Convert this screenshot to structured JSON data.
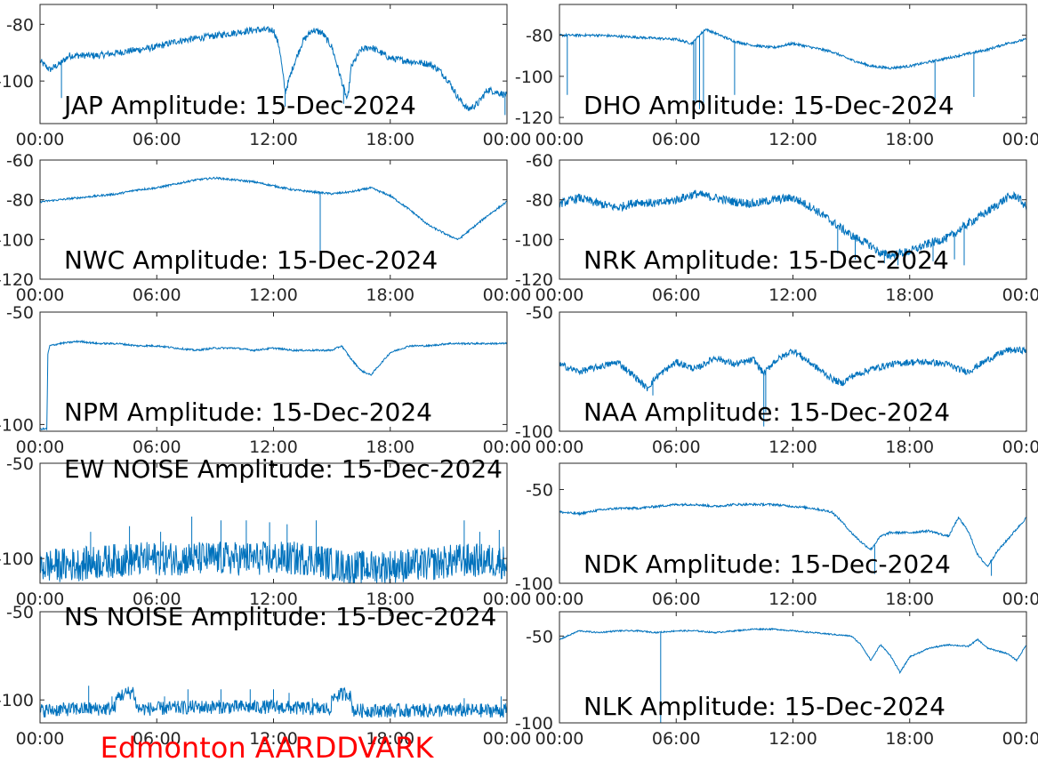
{
  "figure": {
    "footer_label": "Edmonton AARDDVARK",
    "footer_color": "#ff0000",
    "trace_color": "#0072bd",
    "axis_color": "#262626"
  },
  "chart_data": [
    {
      "type": "line",
      "title": "JAP Amplitude: 15-Dec-2024",
      "xlim": [
        0,
        24
      ],
      "x_ticks": [
        0,
        6,
        12,
        18,
        24
      ],
      "x_tick_labels": [
        "00:00",
        "06:00",
        "12:00",
        "18:00",
        "00:00"
      ],
      "ylim": [
        -115,
        -73
      ],
      "y_ticks": [
        -80,
        -100
      ],
      "y_tick_labels": [
        "-80",
        "-100"
      ],
      "series": [
        {
          "x": [
            0,
            0.5,
            1,
            1.5,
            2,
            3,
            4,
            5,
            6,
            7,
            8,
            9,
            10,
            11,
            12,
            12.3,
            12.6,
            13,
            13.5,
            14,
            14.5,
            15,
            15.5,
            15.8,
            16,
            16.5,
            17,
            17.5,
            18,
            19,
            20,
            20.5,
            21,
            21.5,
            22,
            22.5,
            23,
            23.5,
            24
          ],
          "y": [
            -93,
            -96,
            -94,
            -91,
            -91,
            -91,
            -90,
            -89,
            -88,
            -86,
            -85,
            -84,
            -83,
            -82,
            -82,
            -88,
            -104,
            -95,
            -86,
            -82,
            -83,
            -88,
            -100,
            -107,
            -95,
            -89,
            -88,
            -90,
            -92,
            -93,
            -94,
            -96,
            -100,
            -106,
            -110,
            -108,
            -103,
            -104,
            -105
          ],
          "noise": 1.2,
          "spikes": [
            {
              "x": 1.1,
              "y": -106
            },
            {
              "x": 12.6,
              "y": -109
            },
            {
              "x": 15.6,
              "y": -108
            },
            {
              "x": 23.9,
              "y": -112
            }
          ]
        }
      ]
    },
    {
      "type": "line",
      "title": "DHO Amplitude: 15-Dec-2024",
      "xlim": [
        0,
        24
      ],
      "x_ticks": [
        0,
        6,
        12,
        18,
        24
      ],
      "x_tick_labels": [
        "00:00",
        "06:00",
        "12:00",
        "18:00",
        "00:00"
      ],
      "ylim": [
        -123,
        -65
      ],
      "y_ticks": [
        -80,
        -100,
        -120
      ],
      "y_tick_labels": [
        "-80",
        "-100",
        "-120"
      ],
      "series": [
        {
          "x": [
            0,
            2,
            4,
            6,
            6.8,
            7.1,
            7.5,
            8,
            9,
            10,
            11,
            12,
            13,
            14,
            15,
            16,
            17,
            18,
            19,
            20,
            21,
            22,
            23,
            24
          ],
          "y": [
            -80,
            -80,
            -81,
            -82,
            -84,
            -81,
            -77,
            -79,
            -83,
            -85,
            -86,
            -84,
            -86,
            -88,
            -92,
            -95,
            -96,
            -95,
            -93,
            -91,
            -89,
            -87,
            -84,
            -82
          ],
          "noise": 0.6,
          "spikes": [
            {
              "x": 0.4,
              "y": -109
            },
            {
              "x": 6.9,
              "y": -117
            },
            {
              "x": 7.0,
              "y": -113
            },
            {
              "x": 7.2,
              "y": -116
            },
            {
              "x": 7.4,
              "y": -114
            },
            {
              "x": 9.0,
              "y": -109
            },
            {
              "x": 19.3,
              "y": -112
            },
            {
              "x": 21.3,
              "y": -110
            }
          ]
        }
      ]
    },
    {
      "type": "line",
      "title": "NWC Amplitude: 15-Dec-2024",
      "xlim": [
        0,
        24
      ],
      "x_ticks": [
        0,
        6,
        12,
        18,
        24
      ],
      "x_tick_labels": [
        "00:00",
        "06:00",
        "12:00",
        "18:00",
        "00:00"
      ],
      "ylim": [
        -120,
        -60
      ],
      "y_ticks": [
        -60,
        -80,
        -100,
        -120
      ],
      "y_tick_labels": [
        "-60",
        "-80",
        "-100",
        "-120"
      ],
      "series": [
        {
          "x": [
            0,
            1,
            2,
            3,
            4,
            5,
            6,
            7,
            8,
            9,
            10,
            11,
            12,
            13,
            14,
            15,
            16,
            17,
            18,
            19,
            20,
            21,
            21.5,
            22,
            23,
            24
          ],
          "y": [
            -81,
            -80,
            -79,
            -78,
            -77,
            -75,
            -74,
            -72,
            -70,
            -69,
            -70,
            -71,
            -73,
            -75,
            -76,
            -77,
            -76,
            -74,
            -78,
            -85,
            -93,
            -98,
            -100,
            -96,
            -88,
            -81
          ],
          "noise": 0.5,
          "spikes": [
            {
              "x": 14.4,
              "y": -113
            }
          ]
        }
      ]
    },
    {
      "type": "line",
      "title": "NRK Amplitude: 15-Dec-2024",
      "xlim": [
        0,
        24
      ],
      "x_ticks": [
        0,
        6,
        12,
        18,
        24
      ],
      "x_tick_labels": [
        "00:00",
        "06:00",
        "12:00",
        "18:00",
        "00:00"
      ],
      "ylim": [
        -120,
        -60
      ],
      "y_ticks": [
        -60,
        -80,
        -100,
        -120
      ],
      "y_tick_labels": [
        "-60",
        "-80",
        "-100",
        "-120"
      ],
      "series": [
        {
          "x": [
            0,
            1,
            2,
            3,
            4,
            5,
            6,
            7,
            8,
            9,
            10,
            11,
            12,
            13,
            14,
            15,
            16,
            16.5,
            17,
            18,
            19,
            20,
            21,
            22,
            23,
            23.5,
            24
          ],
          "y": [
            -82,
            -79,
            -82,
            -84,
            -81,
            -82,
            -80,
            -77,
            -79,
            -81,
            -82,
            -80,
            -79,
            -84,
            -91,
            -98,
            -103,
            -107,
            -108,
            -106,
            -102,
            -99,
            -92,
            -86,
            -79,
            -78,
            -84
          ],
          "noise": 2.2,
          "spikes": [
            {
              "x": 14.3,
              "y": -107
            },
            {
              "x": 15.2,
              "y": -110
            },
            {
              "x": 16.7,
              "y": -112
            },
            {
              "x": 17.4,
              "y": -113
            },
            {
              "x": 19.2,
              "y": -111
            },
            {
              "x": 20.3,
              "y": -110
            },
            {
              "x": 20.8,
              "y": -113
            }
          ]
        }
      ]
    },
    {
      "type": "line",
      "title": "NPM Amplitude: 15-Dec-2024",
      "xlim": [
        0,
        24
      ],
      "x_ticks": [
        0,
        6,
        12,
        18,
        24
      ],
      "x_tick_labels": [
        "00:00",
        "06:00",
        "12:00",
        "18:00",
        "00:00"
      ],
      "ylim": [
        -103,
        -50
      ],
      "y_ticks": [
        -50,
        -100
      ],
      "y_tick_labels": [
        "-50",
        "-100"
      ],
      "series": [
        {
          "x": [
            0,
            0.35,
            0.4,
            0.5,
            1,
            2,
            3,
            4,
            5,
            6,
            7,
            8,
            9,
            10,
            11,
            12,
            13,
            14,
            15,
            15.5,
            16,
            16.5,
            17,
            17.5,
            18,
            19,
            20,
            21,
            22,
            23,
            24
          ],
          "y": [
            -102,
            -102,
            -69,
            -65,
            -64,
            -63,
            -64,
            -64,
            -65,
            -65,
            -66,
            -67,
            -66,
            -66,
            -67,
            -66,
            -67,
            -67,
            -67,
            -65,
            -71,
            -76,
            -78,
            -73,
            -68,
            -65,
            -65,
            -64,
            -64,
            -64,
            -64
          ],
          "noise": 0.4,
          "spikes": []
        }
      ]
    },
    {
      "type": "line",
      "title": "NAA Amplitude: 15-Dec-2024",
      "xlim": [
        0,
        24
      ],
      "x_ticks": [
        0,
        6,
        12,
        18,
        24
      ],
      "x_tick_labels": [
        "00:00",
        "06:00",
        "12:00",
        "18:00",
        "00:00"
      ],
      "ylim": [
        -100,
        -50
      ],
      "y_ticks": [
        -50,
        -100
      ],
      "y_tick_labels": [
        "-50",
        "-100"
      ],
      "series": [
        {
          "x": [
            0,
            1,
            2,
            3,
            4,
            4.5,
            5,
            6,
            7,
            8,
            9,
            10,
            10.5,
            11,
            12,
            13,
            14,
            14.5,
            15,
            16,
            17,
            18,
            19,
            20,
            20.5,
            21,
            22,
            23,
            24
          ],
          "y": [
            -72,
            -75,
            -73,
            -71,
            -78,
            -82,
            -77,
            -71,
            -74,
            -69,
            -72,
            -70,
            -76,
            -71,
            -66,
            -72,
            -78,
            -80,
            -77,
            -74,
            -72,
            -71,
            -71,
            -72,
            -74,
            -75,
            -70,
            -66,
            -66
          ],
          "noise": 1.4,
          "spikes": [
            {
              "x": 10.5,
              "y": -98
            },
            {
              "x": 10.6,
              "y": -92
            },
            {
              "x": 4.8,
              "y": -85
            }
          ]
        }
      ]
    },
    {
      "type": "line",
      "title": "EW NOISE Amplitude: 15-Dec-2024",
      "xlim": [
        0,
        24
      ],
      "x_ticks": [
        0,
        6,
        12,
        18,
        24
      ],
      "x_tick_labels": [
        "00:00",
        "06:00",
        "12:00",
        "18:00",
        "00:00"
      ],
      "ylim": [
        -113,
        -50
      ],
      "y_ticks": [
        -50,
        -100
      ],
      "y_tick_labels": [
        "-50",
        "-100"
      ],
      "series": [
        {
          "x": [
            0,
            2,
            4,
            6,
            8,
            10,
            12,
            14,
            15,
            16,
            18,
            20,
            21.5,
            22,
            23,
            24
          ],
          "y": [
            -104,
            -103,
            -101,
            -100,
            -100,
            -100,
            -100,
            -100,
            -103,
            -105,
            -104,
            -103,
            -101,
            -101,
            -101,
            -102
          ],
          "noise": 9,
          "spikes": [
            {
              "x": 2.6,
              "y": -86
            },
            {
              "x": 4.6,
              "y": -83
            },
            {
              "x": 6.2,
              "y": -86
            },
            {
              "x": 7.8,
              "y": -78
            },
            {
              "x": 9.3,
              "y": -80
            },
            {
              "x": 10.6,
              "y": -80
            },
            {
              "x": 11.8,
              "y": -81
            },
            {
              "x": 12.7,
              "y": -82
            },
            {
              "x": 14.2,
              "y": -80
            },
            {
              "x": 21.8,
              "y": -80
            },
            {
              "x": 22.6,
              "y": -86
            },
            {
              "x": 23.6,
              "y": -85
            }
          ]
        }
      ]
    },
    {
      "type": "line",
      "title": "NDK Amplitude: 15-Dec-2024",
      "xlim": [
        0,
        24
      ],
      "x_ticks": [
        0,
        6,
        12,
        18,
        24
      ],
      "x_tick_labels": [
        "00:00",
        "06:00",
        "12:00",
        "18:00",
        "00:00"
      ],
      "ylim": [
        -100,
        -36
      ],
      "y_ticks": [
        -50,
        -100
      ],
      "y_tick_labels": [
        "-50",
        "-100"
      ],
      "series": [
        {
          "x": [
            0,
            1,
            2,
            3,
            4,
            5,
            6,
            7,
            8,
            9,
            10,
            11,
            12,
            13,
            14,
            14.5,
            15,
            15.5,
            16,
            16.5,
            17,
            18,
            19,
            20,
            20.5,
            21,
            21.5,
            22,
            22.5,
            23,
            24
          ],
          "y": [
            -62,
            -63,
            -61,
            -60,
            -60,
            -59,
            -58,
            -58,
            -59,
            -58,
            -58,
            -58,
            -59,
            -60,
            -62,
            -67,
            -73,
            -78,
            -82,
            -75,
            -73,
            -73,
            -72,
            -75,
            -65,
            -72,
            -85,
            -91,
            -83,
            -77,
            -65
          ],
          "noise": 0.6,
          "spikes": [
            {
              "x": 16.2,
              "y": -95
            },
            {
              "x": 22.2,
              "y": -96
            }
          ]
        }
      ]
    },
    {
      "type": "line",
      "title": "NS NOISE Amplitude: 15-Dec-2024",
      "xlim": [
        0,
        24
      ],
      "x_ticks": [
        0,
        6,
        12,
        18,
        24
      ],
      "x_tick_labels": [
        "00:00",
        "06:00",
        "12:00",
        "18:00",
        "00:00"
      ],
      "ylim": [
        -113,
        -50
      ],
      "y_ticks": [
        -50,
        -100
      ],
      "y_tick_labels": [
        "-50",
        "-100"
      ],
      "series": [
        {
          "x": [
            0,
            2,
            3.8,
            4,
            4.8,
            5,
            6,
            8,
            10,
            12,
            14,
            14.9,
            15.1,
            15.9,
            16.1,
            18,
            20,
            22,
            24
          ],
          "y": [
            -106,
            -105,
            -105,
            -98,
            -95,
            -105,
            -105,
            -104,
            -104,
            -104,
            -105,
            -105,
            -98,
            -96,
            -106,
            -106,
            -106,
            -106,
            -106
          ],
          "noise": 4,
          "spikes": [
            {
              "x": 2.5,
              "y": -92
            },
            {
              "x": 3.7,
              "y": -98
            },
            {
              "x": 6.4,
              "y": -98
            },
            {
              "x": 7.6,
              "y": -94
            },
            {
              "x": 9.3,
              "y": -94
            },
            {
              "x": 10.8,
              "y": -94
            },
            {
              "x": 12.0,
              "y": -94
            },
            {
              "x": 12.8,
              "y": -96
            },
            {
              "x": 14.0,
              "y": -99
            },
            {
              "x": 21.8,
              "y": -99
            },
            {
              "x": 23.7,
              "y": -98
            }
          ]
        }
      ]
    },
    {
      "type": "line",
      "title": "NLK Amplitude: 15-Dec-2024",
      "xlim": [
        0,
        24
      ],
      "x_ticks": [
        0,
        6,
        12,
        18,
        24
      ],
      "x_tick_labels": [
        "00:00",
        "06:00",
        "12:00",
        "18:00",
        "00:00"
      ],
      "ylim": [
        -100,
        -36
      ],
      "y_ticks": [
        -50,
        -100
      ],
      "y_tick_labels": [
        "-50",
        "-100"
      ],
      "series": [
        {
          "x": [
            0,
            1,
            2,
            3,
            4,
            5,
            6,
            7,
            8,
            9,
            10,
            11,
            12,
            13,
            14,
            15,
            15.5,
            16,
            16.5,
            17,
            17.5,
            18,
            19,
            20,
            21,
            21.5,
            22,
            23,
            23.5,
            24
          ],
          "y": [
            -52,
            -47,
            -48,
            -47,
            -47,
            -48,
            -47,
            -47,
            -48,
            -47,
            -46,
            -46,
            -47,
            -48,
            -49,
            -50,
            -55,
            -64,
            -55,
            -61,
            -71,
            -62,
            -57,
            -55,
            -56,
            -52,
            -57,
            -60,
            -64,
            -55
          ],
          "noise": 0.4,
          "spikes": [
            {
              "x": 5.2,
              "y": -100
            }
          ]
        }
      ]
    }
  ]
}
